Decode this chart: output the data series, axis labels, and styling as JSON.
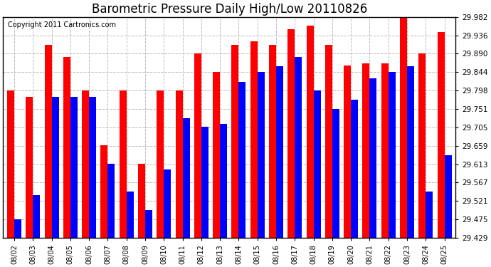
{
  "title": "Barometric Pressure Daily High/Low 20110826",
  "copyright": "Copyright 2011 Cartronics.com",
  "dates": [
    "08/02",
    "08/03",
    "08/04",
    "08/05",
    "08/06",
    "08/07",
    "08/08",
    "08/09",
    "08/10",
    "08/11",
    "08/12",
    "08/13",
    "08/14",
    "08/15",
    "08/16",
    "08/17",
    "08/18",
    "08/19",
    "08/20",
    "08/21",
    "08/22",
    "08/23",
    "08/24",
    "08/25"
  ],
  "highs": [
    29.798,
    29.782,
    29.912,
    29.882,
    29.798,
    29.66,
    29.798,
    29.614,
    29.798,
    29.798,
    29.89,
    29.844,
    29.912,
    29.92,
    29.912,
    29.952,
    29.96,
    29.912,
    29.86,
    29.866,
    29.866,
    29.982,
    29.89,
    29.944
  ],
  "lows": [
    29.475,
    29.536,
    29.782,
    29.782,
    29.782,
    29.614,
    29.544,
    29.498,
    29.6,
    29.728,
    29.706,
    29.714,
    29.82,
    29.844,
    29.858,
    29.882,
    29.798,
    29.752,
    29.774,
    29.828,
    29.844,
    29.858,
    29.544,
    29.636
  ],
  "high_color": "#ff0000",
  "low_color": "#0000ff",
  "background_color": "#ffffff",
  "grid_color": "#bbbbbb",
  "bar_width": 0.38,
  "ylim_min": 29.429,
  "ylim_max": 29.982,
  "yticks": [
    29.429,
    29.475,
    29.521,
    29.567,
    29.613,
    29.659,
    29.705,
    29.751,
    29.798,
    29.844,
    29.89,
    29.936,
    29.982
  ],
  "title_fontsize": 12,
  "copyright_fontsize": 7
}
